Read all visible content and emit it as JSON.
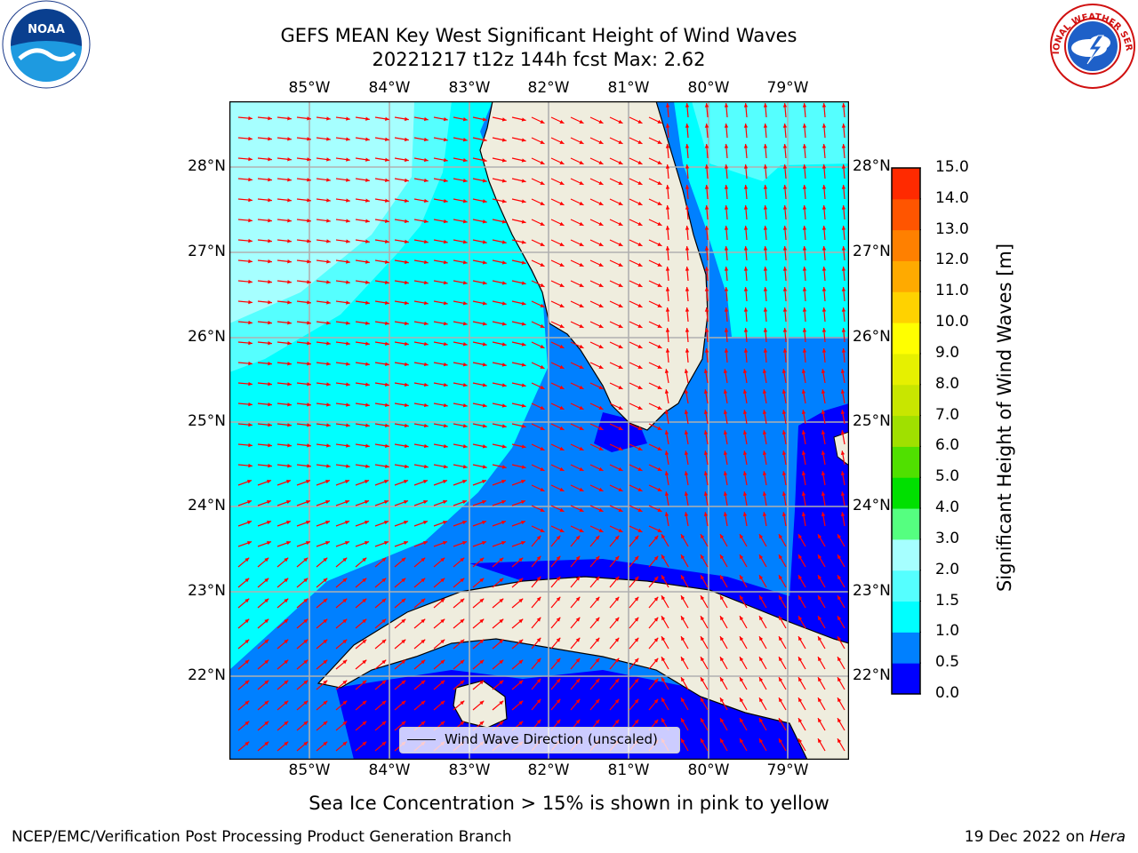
{
  "title": {
    "line1": "GEFS MEAN Key West Significant Height of Wind Waves",
    "line2": "20221217 t12z 144h fcst   Max: 2.62"
  },
  "map": {
    "lon_labels": [
      "85°W",
      "84°W",
      "83°W",
      "82°W",
      "81°W",
      "80°W",
      "79°W"
    ],
    "lat_labels": [
      "28°N",
      "27°N",
      "26°N",
      "25°N",
      "24°N",
      "23°N",
      "22°N"
    ],
    "legend": "Wind Wave Direction (unscaled)",
    "colors": {
      "land": "#efedde",
      "coast": "#000000",
      "grid": "#b0b0b0",
      "arrow": "#ff0000",
      "lightest": "#a6ffff",
      "cyan2": "#55ffff",
      "cyan": "#00ffff",
      "midblue": "#0080ff",
      "deepblue": "#0000ff"
    }
  },
  "colorbar": {
    "label": "Significant Height of Wind Waves [m]",
    "ticks": [
      "0.0",
      "0.5",
      "1.0",
      "1.5",
      "2.0",
      "3.0",
      "4.0",
      "5.0",
      "6.0",
      "7.0",
      "8.0",
      "9.0",
      "10.0",
      "11.0",
      "12.0",
      "13.0",
      "14.0",
      "15.0"
    ],
    "colors": [
      "#0000ff",
      "#0080ff",
      "#00ffff",
      "#55ffff",
      "#a6ffff",
      "#55ff80",
      "#00e000",
      "#50e000",
      "#a0e000",
      "#c8e600",
      "#e6f000",
      "#ffff00",
      "#ffd200",
      "#ffaa00",
      "#ff8000",
      "#ff5500",
      "#ff2a00"
    ]
  },
  "ice_note": "Sea Ice Concentration > 15% is shown in pink to yellow",
  "footer": {
    "left": "NCEP/EMC/Verification Post Processing Product Generation Branch",
    "right_prefix": "19 Dec 2022 on",
    "right_host": "Hera"
  },
  "logos": {
    "noaa": "NOAA",
    "nws": "NATIONAL WEATHER SERVICE"
  }
}
